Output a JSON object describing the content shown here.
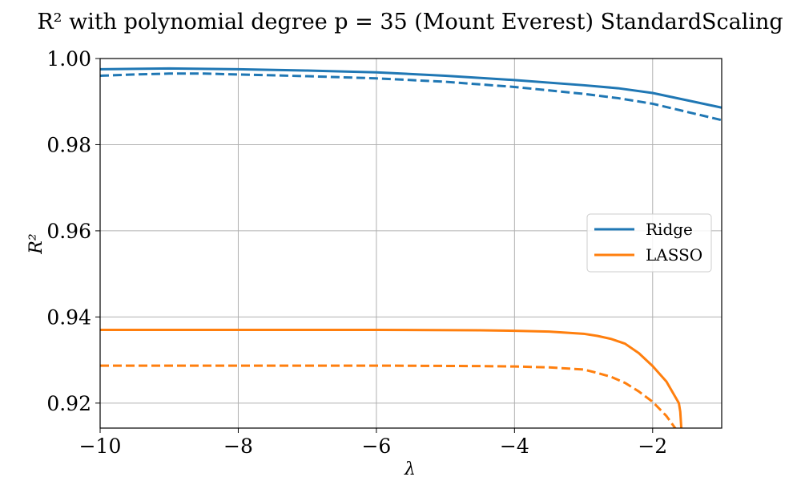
{
  "chart_data": {
    "type": "line",
    "title": "R² with polynomial degree p = 35 (Mount Everest) StandardScaling",
    "xlabel": "λ",
    "ylabel": "R²",
    "xlim": [
      -10,
      -1
    ],
    "ylim": [
      0.9142,
      1.0
    ],
    "xticks": [
      -10,
      -8,
      -6,
      -4,
      -2
    ],
    "xtick_labels": [
      "−10",
      "−8",
      "−6",
      "−4",
      "−2"
    ],
    "yticks": [
      0.92,
      0.94,
      0.96,
      0.98,
      1.0
    ],
    "ytick_labels": [
      "0.92",
      "0.94",
      "0.96",
      "0.98",
      "1.00"
    ],
    "grid": true,
    "legend": {
      "position": "center-right",
      "entries": [
        "Ridge",
        "LASSO"
      ]
    },
    "colors": {
      "Ridge": "#1f77b4",
      "LASSO": "#ff7f0e",
      "grid": "#b0b0b0"
    },
    "series": [
      {
        "name": "Ridge",
        "line_style": "solid",
        "color": "#1f77b4",
        "x": [
          -10,
          -9.5,
          -9.0,
          -8.5,
          -8.0,
          -7.0,
          -6.0,
          -5.0,
          -4.0,
          -3.0,
          -2.5,
          -2.0,
          -1.5,
          -1.0
        ],
        "y": [
          0.9975,
          0.9976,
          0.9977,
          0.9976,
          0.9975,
          0.9972,
          0.9968,
          0.996,
          0.995,
          0.9938,
          0.9931,
          0.992,
          0.9903,
          0.9886
        ]
      },
      {
        "name": "Ridge (dashed)",
        "line_style": "dashed",
        "color": "#1f77b4",
        "x": [
          -10,
          -9.5,
          -9.0,
          -8.5,
          -8.0,
          -7.0,
          -6.0,
          -5.0,
          -4.0,
          -3.0,
          -2.5,
          -2.0,
          -1.5,
          -1.0
        ],
        "y": [
          0.996,
          0.9963,
          0.9965,
          0.9965,
          0.9963,
          0.9959,
          0.9954,
          0.9946,
          0.9934,
          0.9918,
          0.9908,
          0.9895,
          0.9876,
          0.9857
        ]
      },
      {
        "name": "LASSO",
        "line_style": "solid",
        "color": "#ff7f0e",
        "x": [
          -10,
          -8,
          -6,
          -4.5,
          -4.0,
          -3.5,
          -3.0,
          -2.8,
          -2.6,
          -2.4,
          -2.2,
          -2.0,
          -1.8,
          -1.62,
          -1.6,
          -1.58
        ],
        "y": [
          0.937,
          0.937,
          0.937,
          0.9369,
          0.9368,
          0.9366,
          0.9361,
          0.9356,
          0.9349,
          0.9338,
          0.9316,
          0.9286,
          0.925,
          0.92,
          0.918,
          0.913
        ]
      },
      {
        "name": "LASSO (dashed)",
        "line_style": "dashed",
        "color": "#ff7f0e",
        "x": [
          -10,
          -8,
          -6,
          -4.5,
          -4.0,
          -3.5,
          -3.0,
          -2.8,
          -2.6,
          -2.4,
          -2.2,
          -2.0,
          -1.8,
          -1.62
        ],
        "y": [
          0.9287,
          0.9287,
          0.9287,
          0.9286,
          0.9285,
          0.9283,
          0.9278,
          0.927,
          0.9261,
          0.9247,
          0.9227,
          0.9203,
          0.917,
          0.913
        ]
      }
    ]
  }
}
